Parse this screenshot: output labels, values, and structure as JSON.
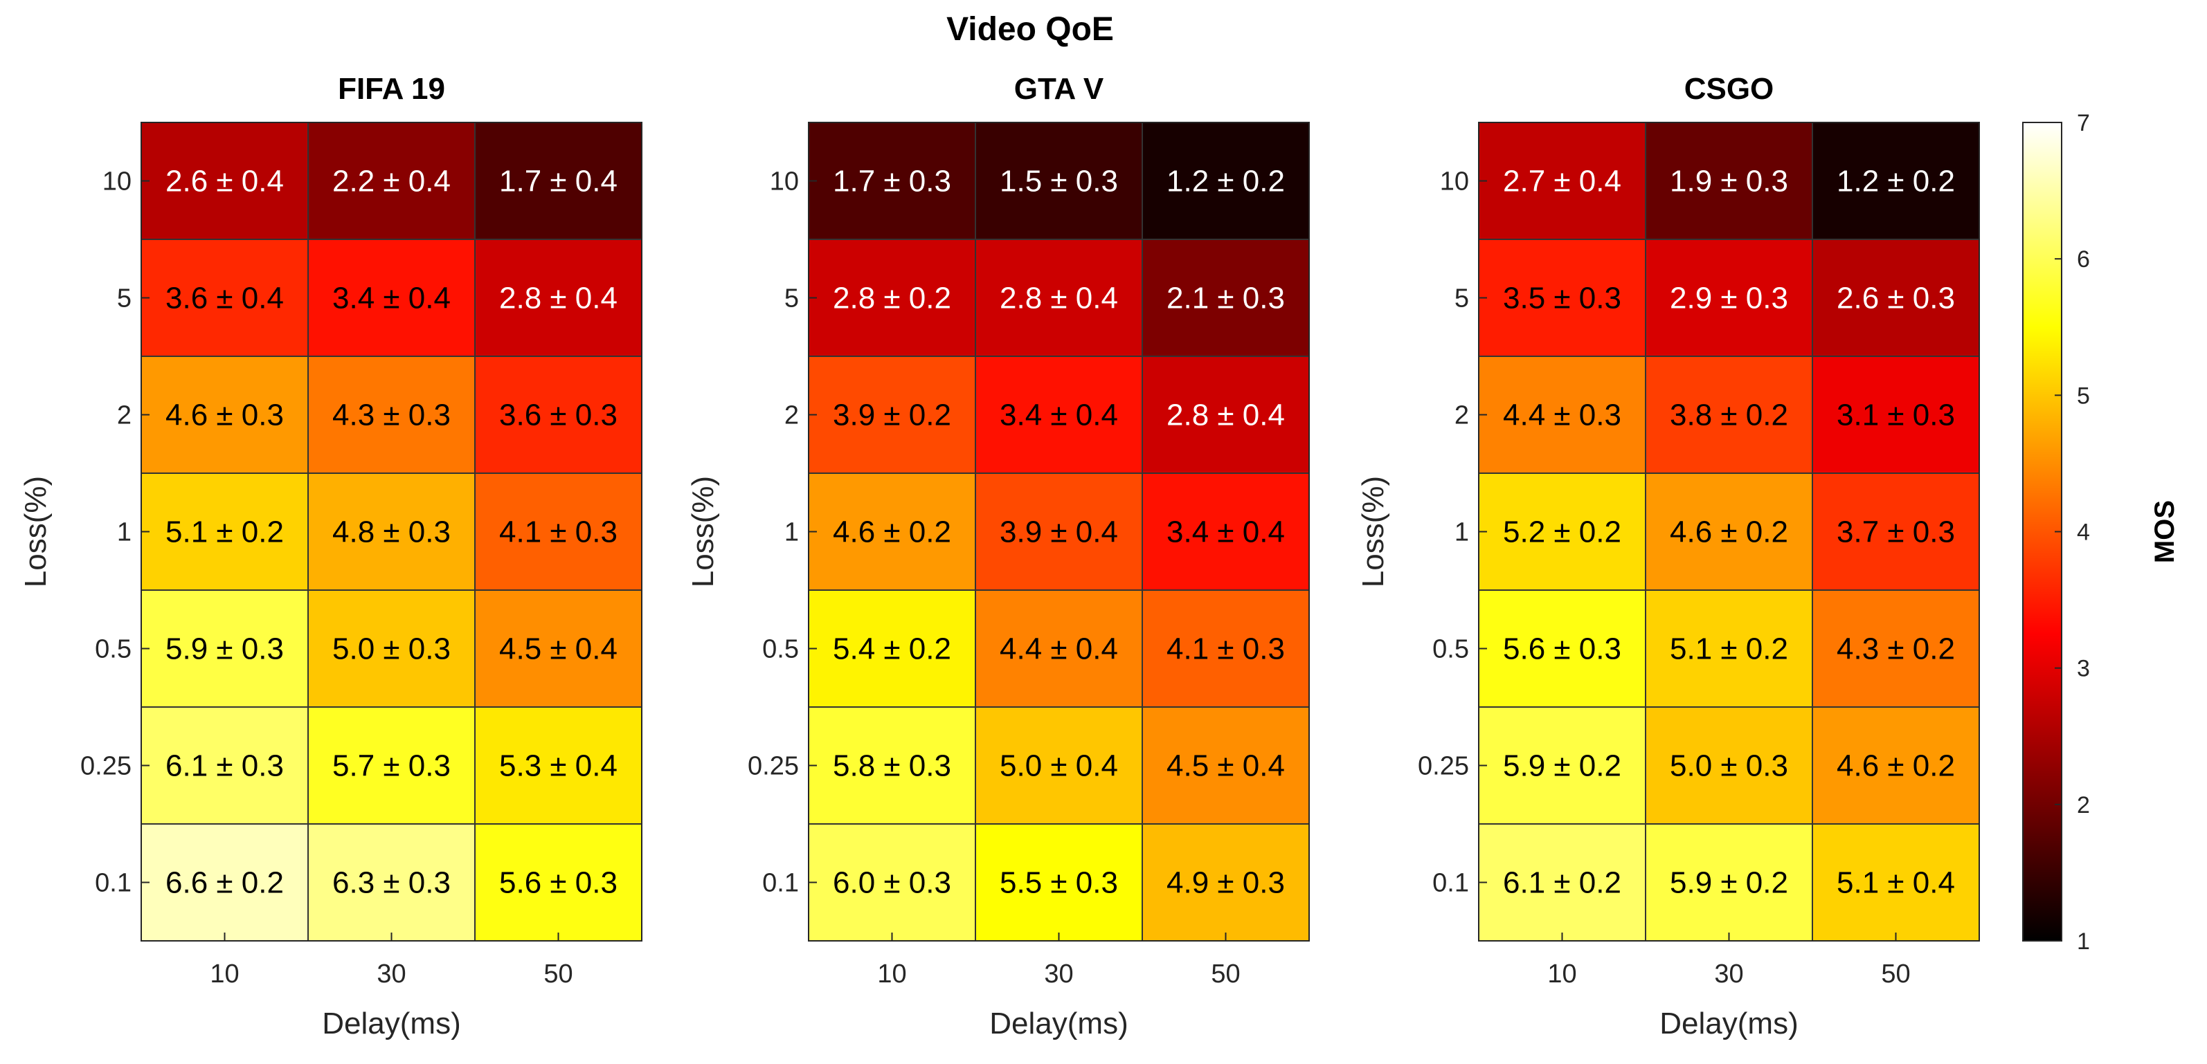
{
  "chart_data": {
    "type": "heatmap",
    "title": "Video QoE",
    "xlabel": "Delay(ms)",
    "ylabel": "Loss(%)",
    "x_categories": [
      "10",
      "30",
      "50"
    ],
    "y_categories": [
      "10",
      "5",
      "2",
      "1",
      "0.5",
      "0.25",
      "0.1"
    ],
    "colormap": "hot",
    "colorbar": {
      "label": "MOS",
      "range": [
        1,
        7
      ],
      "ticks": [
        "1",
        "2",
        "3",
        "4",
        "5",
        "6",
        "7"
      ]
    },
    "panels": [
      {
        "title": "FIFA 19",
        "values": [
          [
            2.6,
            2.2,
            1.7
          ],
          [
            3.6,
            3.4,
            2.8
          ],
          [
            4.6,
            4.3,
            3.6
          ],
          [
            5.1,
            4.8,
            4.1
          ],
          [
            5.9,
            5.0,
            4.5
          ],
          [
            6.1,
            5.7,
            5.3
          ],
          [
            6.6,
            6.3,
            5.6
          ]
        ],
        "errors": [
          [
            0.4,
            0.4,
            0.4
          ],
          [
            0.4,
            0.4,
            0.4
          ],
          [
            0.3,
            0.3,
            0.3
          ],
          [
            0.2,
            0.3,
            0.3
          ],
          [
            0.3,
            0.3,
            0.4
          ],
          [
            0.3,
            0.3,
            0.4
          ],
          [
            0.2,
            0.3,
            0.3
          ]
        ]
      },
      {
        "title": "GTA V",
        "values": [
          [
            1.7,
            1.5,
            1.2
          ],
          [
            2.8,
            2.8,
            2.1
          ],
          [
            3.9,
            3.4,
            2.8
          ],
          [
            4.6,
            3.9,
            3.4
          ],
          [
            5.4,
            4.4,
            4.1
          ],
          [
            5.8,
            5.0,
            4.5
          ],
          [
            6.0,
            5.5,
            4.9
          ]
        ],
        "errors": [
          [
            0.3,
            0.3,
            0.2
          ],
          [
            0.2,
            0.4,
            0.3
          ],
          [
            0.2,
            0.4,
            0.4
          ],
          [
            0.2,
            0.4,
            0.4
          ],
          [
            0.2,
            0.4,
            0.3
          ],
          [
            0.3,
            0.4,
            0.4
          ],
          [
            0.3,
            0.3,
            0.3
          ]
        ]
      },
      {
        "title": "CSGO",
        "values": [
          [
            2.7,
            1.9,
            1.2
          ],
          [
            3.5,
            2.9,
            2.6
          ],
          [
            4.4,
            3.8,
            3.1
          ],
          [
            5.2,
            4.6,
            3.7
          ],
          [
            5.6,
            5.1,
            4.3
          ],
          [
            5.9,
            5.0,
            4.6
          ],
          [
            6.1,
            5.9,
            5.1
          ]
        ],
        "errors": [
          [
            0.4,
            0.3,
            0.2
          ],
          [
            0.3,
            0.3,
            0.3
          ],
          [
            0.3,
            0.2,
            0.3
          ],
          [
            0.2,
            0.2,
            0.3
          ],
          [
            0.3,
            0.2,
            0.2
          ],
          [
            0.2,
            0.3,
            0.2
          ],
          [
            0.2,
            0.2,
            0.4
          ]
        ]
      }
    ]
  }
}
